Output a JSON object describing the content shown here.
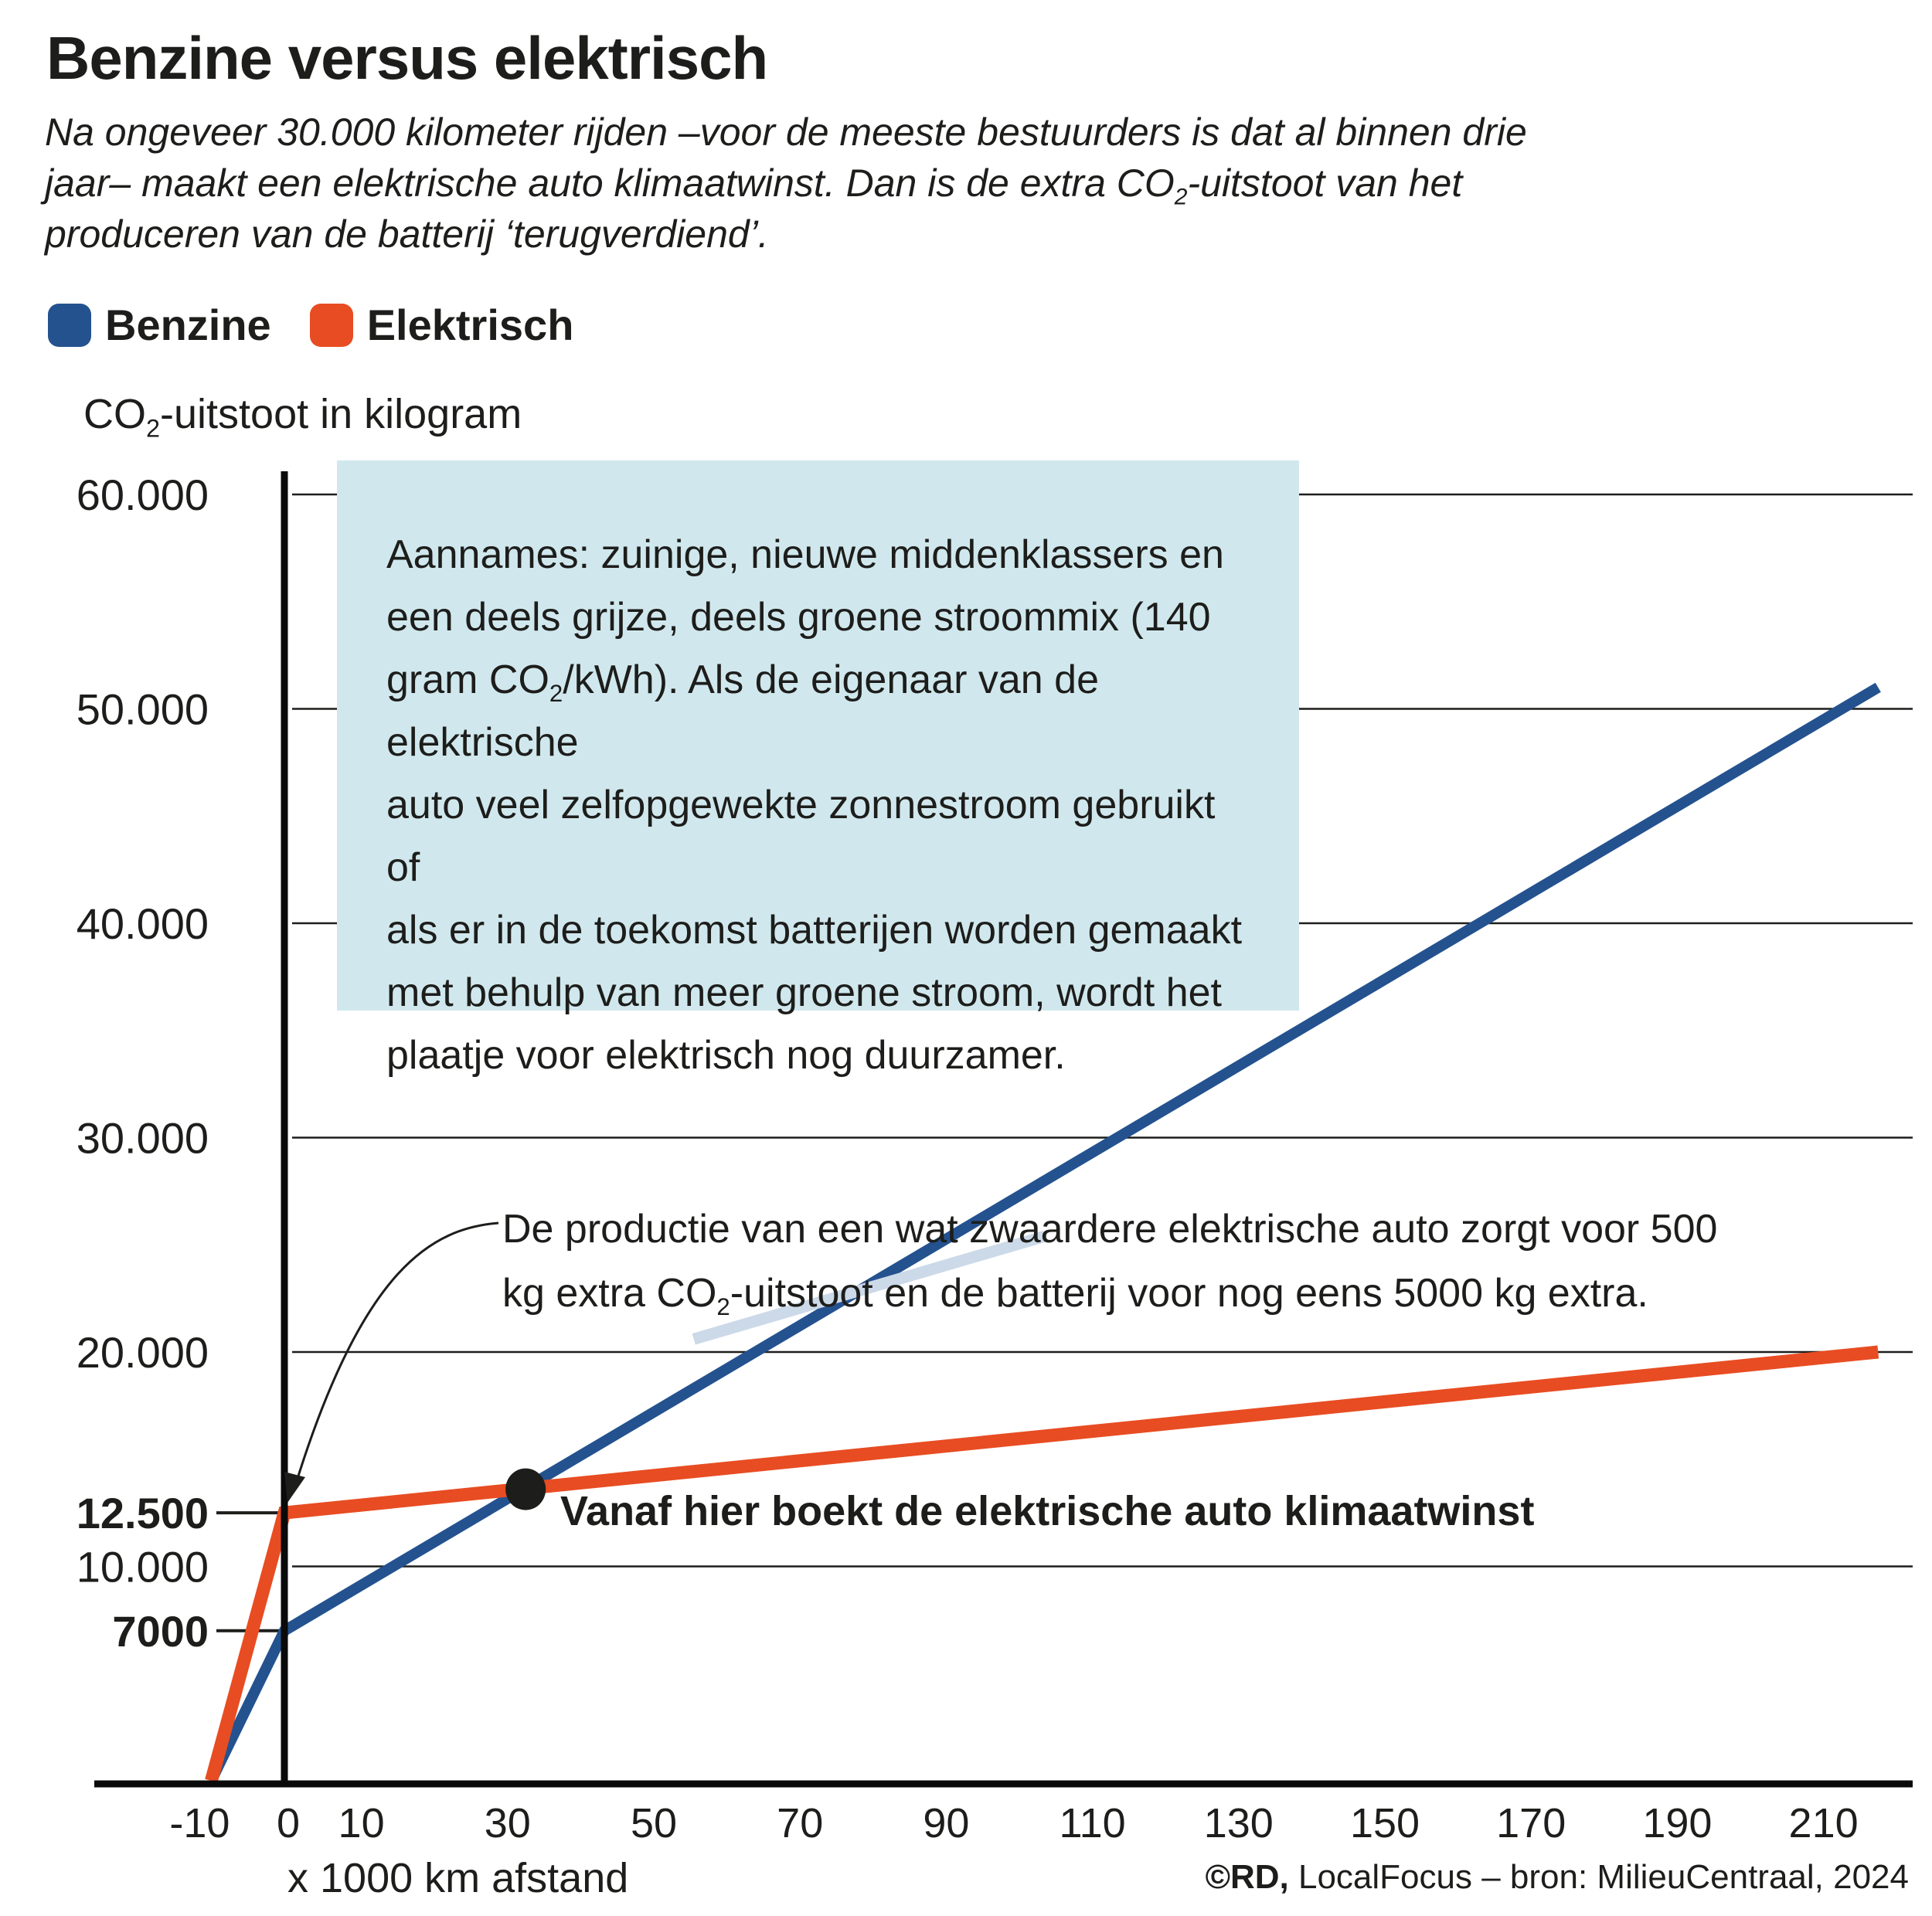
{
  "title": "Benzine versus elektrisch",
  "subtitle_lines": [
    "Na ongeveer 30.000 kilometer rijden –voor de meeste bestuurders is dat al binnen drie",
    "jaar– maakt een elektrische auto klimaatwinst. Dan is de extra CO",
    "-uitstoot van het",
    "produceren van de batterij ‘terugverdiend’."
  ],
  "subscript_2": "2",
  "legend": [
    {
      "label": "Benzine",
      "color": "#24528f"
    },
    {
      "label": "Elektrisch",
      "color": "#e84c22"
    }
  ],
  "note": {
    "line1": "Aannames: zuinige, nieuwe middenklassers en",
    "line2": "een deels grijze, deels groene stroommix (140",
    "line3a": "gram CO",
    "line3b": "/kWh). Als de eigenaar van de elektrische",
    "line4": "auto veel zelfopgewekte zonnestroom gebruikt of",
    "line5": "als er in de toekomst batterijen worden gemaakt",
    "line6": "met behulp van meer groene stroom, wordt het",
    "line7": "plaatje voor elektrisch nog duurzamer."
  },
  "callout": {
    "line1": "De productie van een wat zwaardere elektrische auto zorgt voor 500",
    "line2a": "kg extra CO",
    "line2b": "-uitstoot en de batterij voor nog eens 5000 kg extra."
  },
  "dot_label": "Vanaf hier boekt de elektrische auto klimaatwinst",
  "source": {
    "bold": "©RD,",
    "rest": " LocalFocus – bron: MilieuCentraal, 2024"
  },
  "chart_data": {
    "type": "line",
    "title": "Benzine versus elektrisch",
    "ylabel_a": "CO",
    "ylabel_b": "-uitstoot in kilogram",
    "xlabel": "x 1000 km afstand",
    "ylim": [
      0,
      60000
    ],
    "xlim": [
      -10,
      220
    ],
    "y_ticks": [
      {
        "value": 60000,
        "label": "60.000",
        "bold": false
      },
      {
        "value": 50000,
        "label": "50.000",
        "bold": false
      },
      {
        "value": 40000,
        "label": "40.000",
        "bold": false
      },
      {
        "value": 30000,
        "label": "30.000",
        "bold": false
      },
      {
        "value": 20000,
        "label": "20.000",
        "bold": false
      },
      {
        "value": 12500,
        "label": "12.500",
        "bold": true
      },
      {
        "value": 10000,
        "label": "10.000",
        "bold": false
      },
      {
        "value": 7000,
        "label": "7000",
        "bold": true
      }
    ],
    "gridlines": [
      60000,
      50000,
      40000,
      30000,
      20000,
      10000
    ],
    "x_ticks": [
      {
        "value": -10,
        "label": "-10"
      },
      {
        "value": 0,
        "label": "0"
      },
      {
        "value": 10,
        "label": "10"
      },
      {
        "value": 30,
        "label": "30"
      },
      {
        "value": 50,
        "label": "50"
      },
      {
        "value": 70,
        "label": "70"
      },
      {
        "value": 90,
        "label": "90"
      },
      {
        "value": 110,
        "label": "110"
      },
      {
        "value": 130,
        "label": "130"
      },
      {
        "value": 150,
        "label": "150"
      },
      {
        "value": 170,
        "label": "170"
      },
      {
        "value": 190,
        "label": "190"
      },
      {
        "value": 210,
        "label": "210"
      }
    ],
    "series": [
      {
        "name": "Benzine",
        "color": "#24528f",
        "points": [
          [
            -10,
            0
          ],
          [
            0,
            7000
          ],
          [
            218,
            51000
          ]
        ],
        "faded_segment": [
          [
            56,
            20600
          ],
          [
            104,
            25400
          ]
        ],
        "faded_color": "#ccd9e8"
      },
      {
        "name": "Elektrisch",
        "color": "#e84c22",
        "points": [
          [
            -10,
            0
          ],
          [
            0,
            12500
          ],
          [
            218,
            20000
          ]
        ]
      }
    ],
    "crossover_point": {
      "x": 33,
      "y": 13600,
      "label": "Vanaf hier boekt de elektrische auto klimaatwinst"
    },
    "grid": true,
    "legend_position": "top-left"
  }
}
